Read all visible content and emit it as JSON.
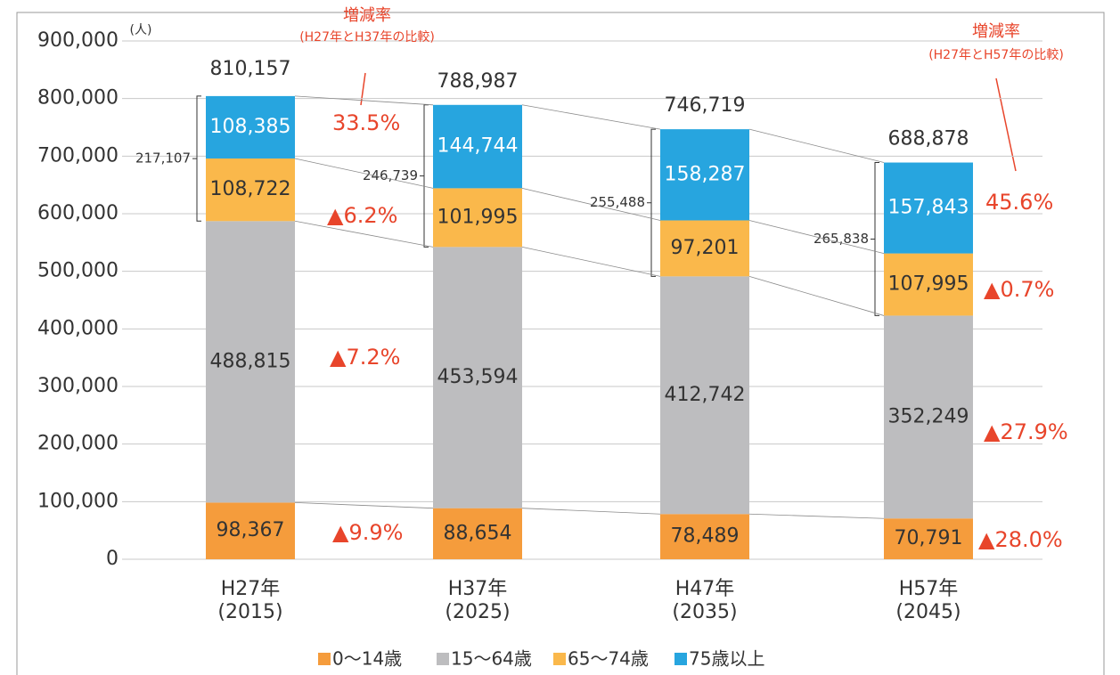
{
  "chart_data": {
    "type": "stacked_bar",
    "unit_label": "(人)",
    "categories": [
      [
        "H27年",
        "(2015)"
      ],
      [
        "H37年",
        "(2025)"
      ],
      [
        "H47年",
        "(2035)"
      ],
      [
        "H57年",
        "(2045)"
      ]
    ],
    "series": [
      {
        "name": "0〜14歳",
        "color": "#f59c3c",
        "values": [
          98367,
          88654,
          78489,
          70791
        ],
        "value_labels": [
          "98,367",
          "88,654",
          "78,489",
          "70,791"
        ]
      },
      {
        "name": "15〜64歳",
        "color": "#bdbdbf",
        "values": [
          488815,
          453594,
          412742,
          352249
        ],
        "value_labels": [
          "488,815",
          "453,594",
          "412,742",
          "352,249"
        ]
      },
      {
        "name": "65〜74歳",
        "color": "#fab84b",
        "values": [
          108722,
          101995,
          97201,
          107995
        ],
        "value_labels": [
          "108,722",
          "101,995",
          "97,201",
          "107,995"
        ]
      },
      {
        "name": "75歳以上",
        "color": "#27a5df",
        "values": [
          108385,
          144744,
          158287,
          157843
        ],
        "value_labels": [
          "108,385",
          "144,744",
          "158,287",
          "157,843"
        ]
      }
    ],
    "totals": {
      "values": [
        810157,
        788987,
        746719,
        688878
      ],
      "value_labels": [
        "810,157",
        "788,987",
        "746,719",
        "688,878"
      ]
    },
    "elderly_totals": {
      "values": [
        217107,
        246739,
        255488,
        265838
      ],
      "value_labels": [
        "217,107",
        "246,739",
        "255,488",
        "265,838"
      ]
    },
    "annotations": [
      "増減率",
      "(H27年とH37年の比較)",
      "33.5%",
      "▲6.2%",
      "▲7.2%",
      "▲9.9%",
      "増減率",
      "(H27年とH57年の比較)",
      "45.6%",
      "▲0.7%",
      "▲27.9%",
      "▲28.0%"
    ],
    "annotation_color": "#e8452b",
    "ylim": [
      0,
      900000
    ],
    "yticks": [
      0,
      {
        "value": 100000,
        "label": "100,000"
      },
      {
        "value": 200000,
        "label": "200,000"
      },
      {
        "value": 300000,
        "label": "300,000"
      },
      {
        "value": 400000,
        "label": "400,000"
      },
      {
        "value": 500000,
        "label": "500,000"
      },
      {
        "value": 600000,
        "label": "600,000"
      },
      {
        "value": 700000,
        "label": "700,000"
      },
      {
        "value": 800000,
        "label": "800,000"
      },
      {
        "value": 900000,
        "label": "900,000"
      }
    ],
    "grid": true
  }
}
